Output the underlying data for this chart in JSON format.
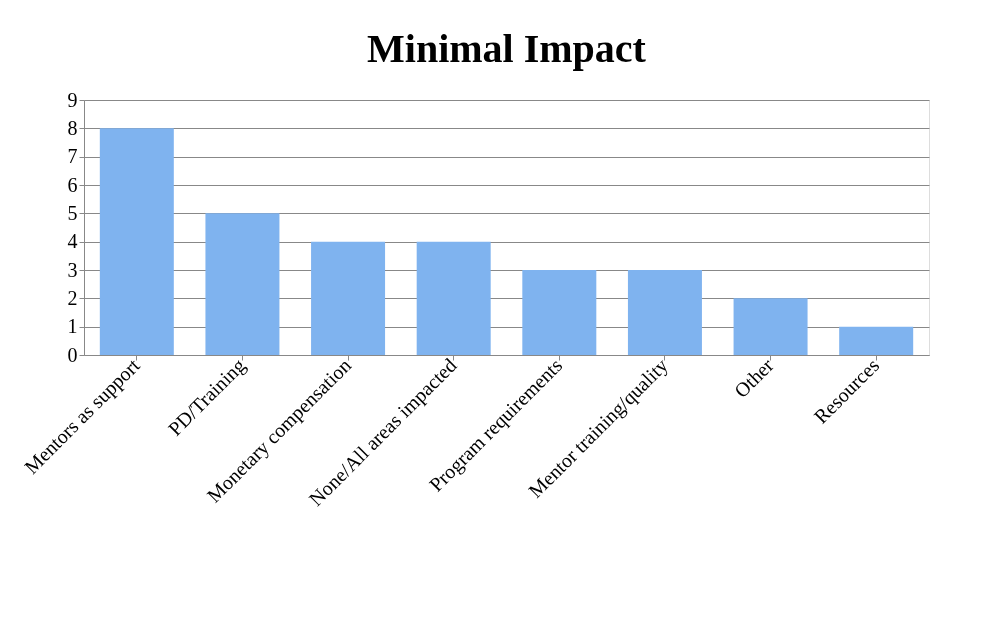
{
  "chart_data": {
    "type": "bar",
    "title": "Minimal Impact",
    "categories": [
      "Mentors as support",
      "PD/Training",
      "Monetary compensation",
      "None/All areas impacted",
      "Program requirements",
      "Mentor training/quality",
      "Other",
      "Resources"
    ],
    "values": [
      8,
      5,
      4,
      4,
      3,
      3,
      2,
      1
    ],
    "color": "#7fb3ef",
    "ylim": [
      0,
      9
    ],
    "yticks": [
      0,
      1,
      2,
      3,
      4,
      5,
      6,
      7,
      8,
      9
    ],
    "grid": "y"
  }
}
